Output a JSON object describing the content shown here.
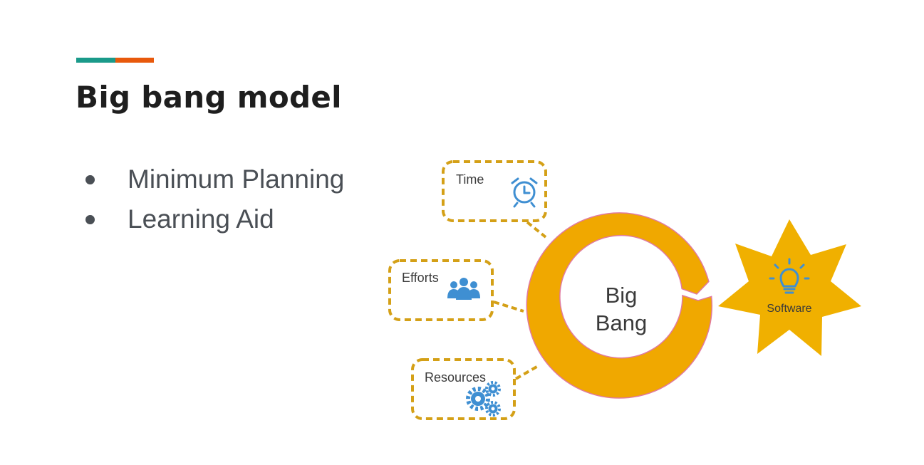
{
  "slide": {
    "title": "Big bang model",
    "accent_colors": [
      "#1a9a8a",
      "#e8590c"
    ],
    "bullets": [
      {
        "label": "Minimum Planning"
      },
      {
        "label": "Learning Aid"
      }
    ]
  },
  "diagram": {
    "center": {
      "line1": "Big",
      "line2": "Bang"
    },
    "inputs": [
      {
        "label": "Time",
        "icon": "alarm-clock-icon"
      },
      {
        "label": "Efforts",
        "icon": "people-group-icon"
      },
      {
        "label": "Resources",
        "icon": "gears-icon"
      }
    ],
    "output": {
      "label": "Software",
      "icon": "lightbulb-icon"
    },
    "colors": {
      "ring": "#f0a800",
      "ring_edge": "#e07aa0",
      "bubble_border": "#d4a017",
      "icon": "#3f8fd2",
      "star": "#f0b000"
    }
  }
}
